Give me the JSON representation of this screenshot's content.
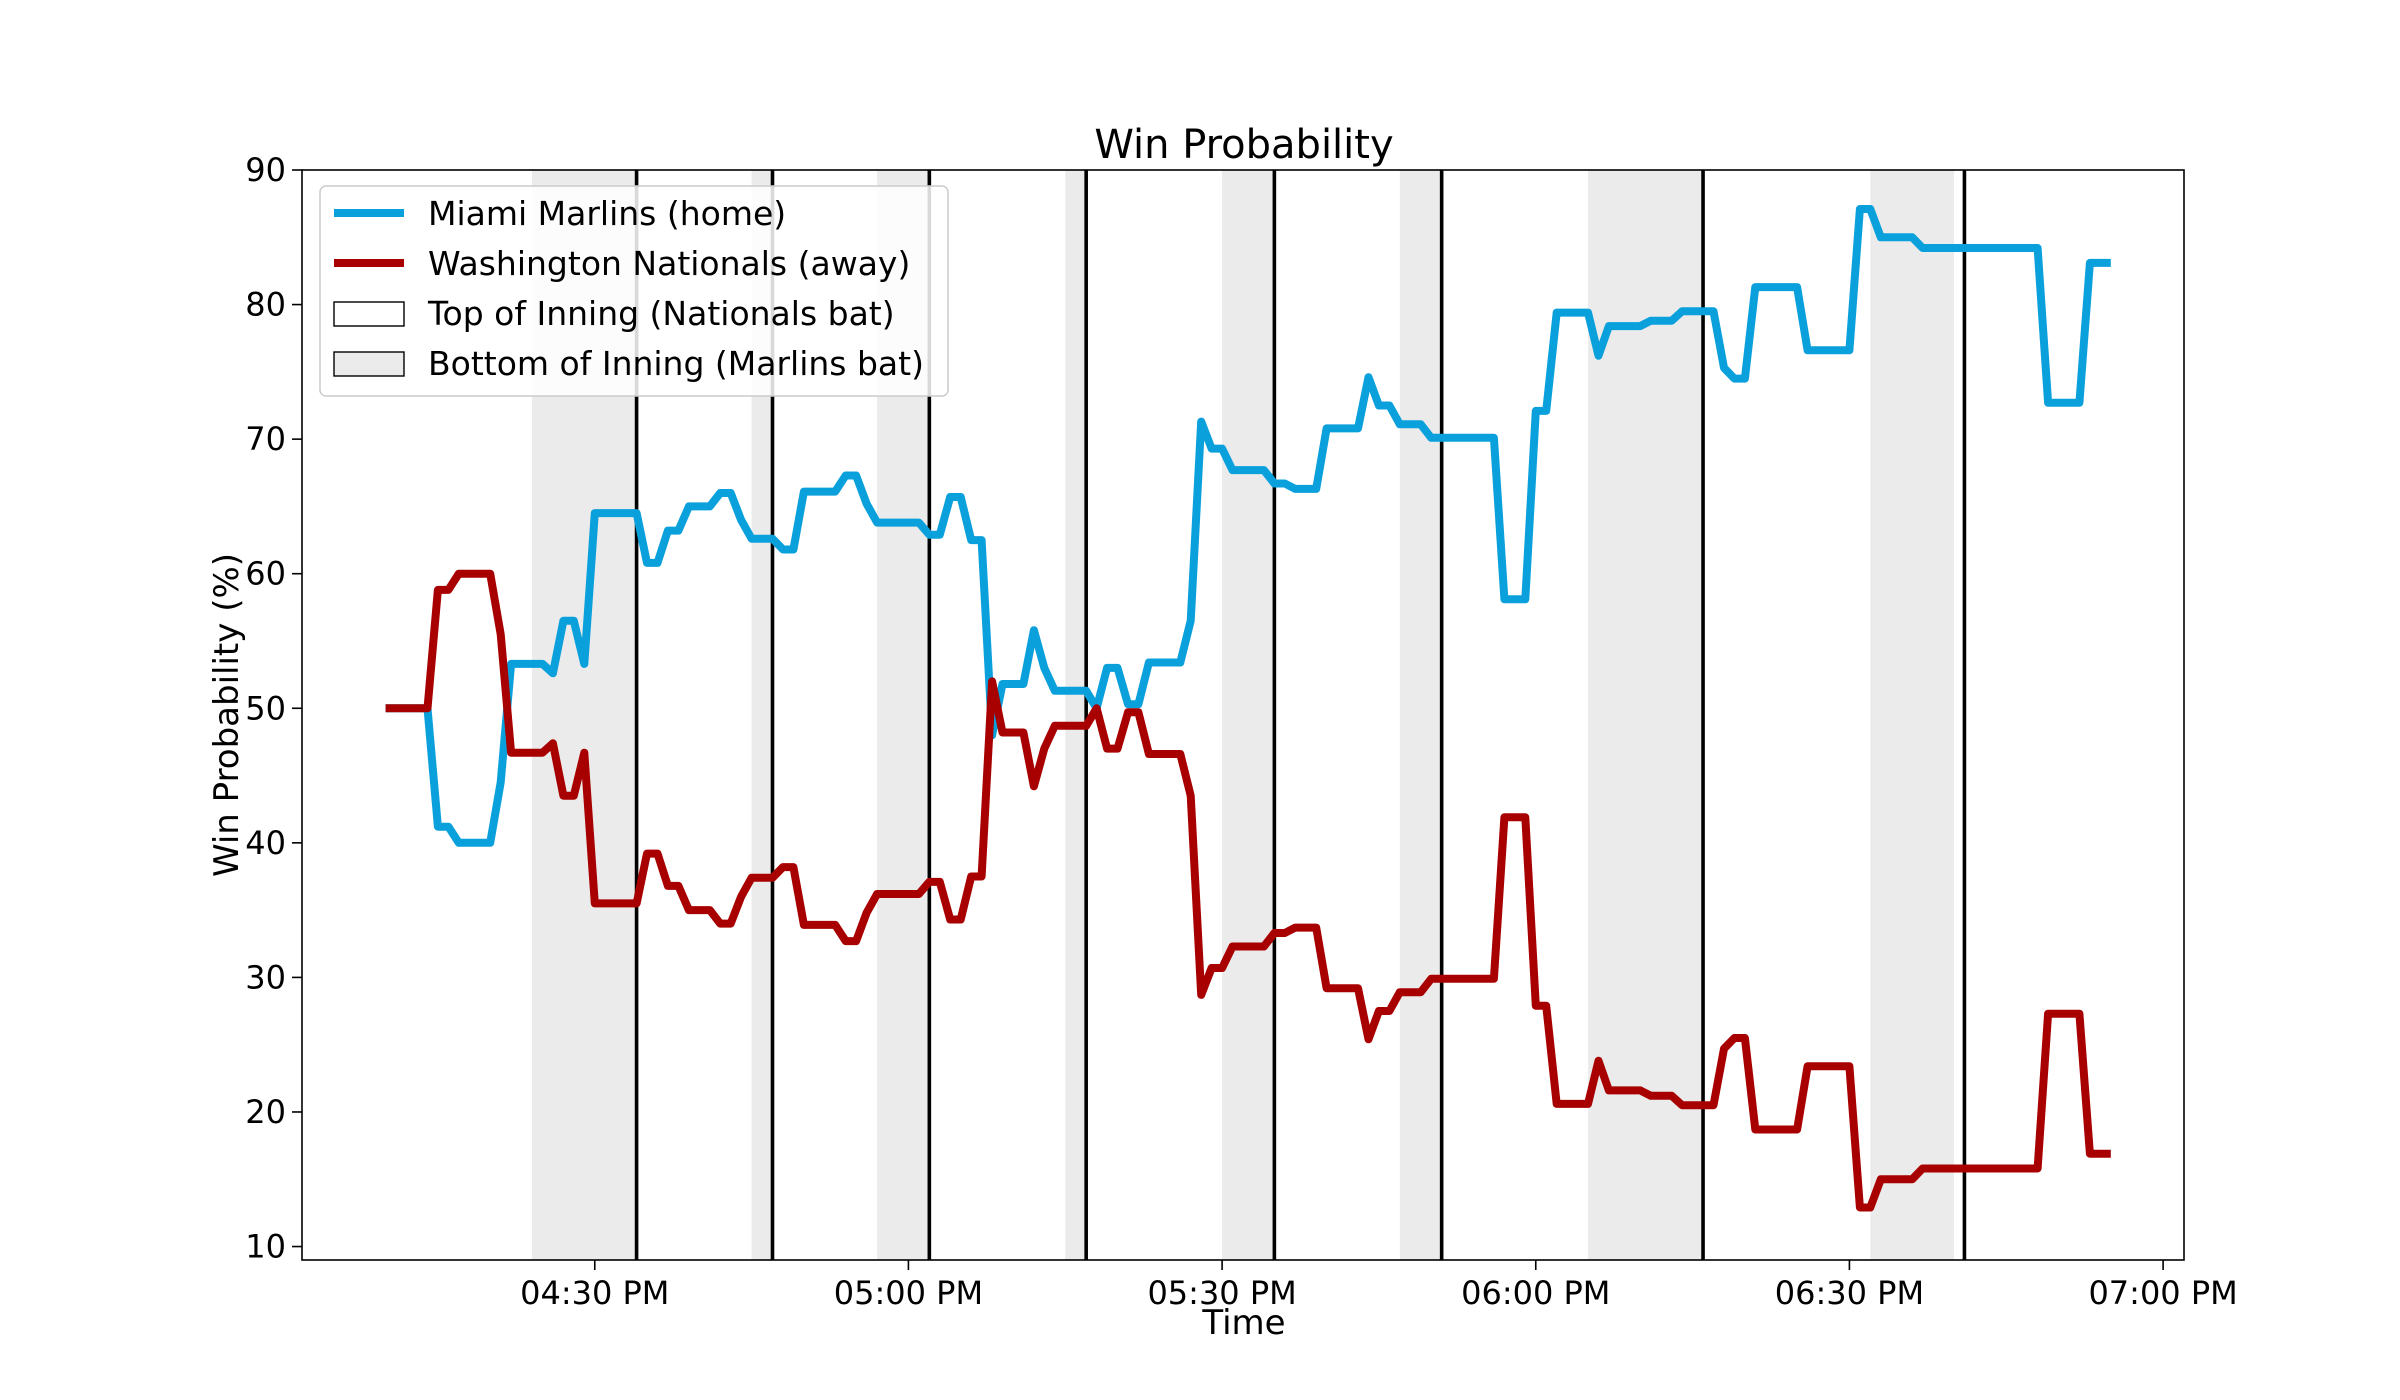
{
  "chart_data": {
    "type": "line",
    "title": "Win Probability",
    "xlabel": "Time",
    "ylabel": "Win Probability (%)",
    "ylim": [
      9,
      90
    ],
    "yticks": [
      10,
      20,
      30,
      40,
      50,
      60,
      70,
      80,
      90
    ],
    "xlim": [
      "04:02 PM",
      "07:02 PM"
    ],
    "xticks": [
      "04:30 PM",
      "05:00 PM",
      "05:30 PM",
      "06:00 PM",
      "06:30 PM",
      "07:00 PM"
    ],
    "grid": false,
    "legend_position": "top-left",
    "colors": {
      "home": "#0aa0dc",
      "away": "#a80000",
      "shade": "#ebebeb"
    },
    "legend": [
      {
        "label": "Miami Marlins (home)",
        "kind": "line",
        "color": "#0aa0dc"
      },
      {
        "label": "Washington Nationals (away)",
        "kind": "line",
        "color": "#a80000"
      },
      {
        "label": "Top of Inning (Nationals bat)",
        "kind": "patch",
        "color": "#ffffff"
      },
      {
        "label": "Bottom of Inning (Marlins bat)",
        "kind": "patch",
        "color": "#ebebeb"
      }
    ],
    "inning_breaks": [
      "04:34 PM",
      "04:47 PM",
      "05:02 PM",
      "05:17 PM",
      "05:35 PM",
      "05:51 PM",
      "06:16 PM",
      "06:41 PM"
    ],
    "bottom_innings": [
      [
        "04:24 PM",
        "04:34 PM"
      ],
      [
        "04:45 PM",
        "04:47 PM"
      ],
      [
        "04:57 PM",
        "05:02 PM"
      ],
      [
        "05:15 PM",
        "05:17 PM"
      ],
      [
        "05:30 PM",
        "05:35 PM"
      ],
      [
        "05:47 PM",
        "05:51 PM"
      ],
      [
        "06:05 PM",
        "06:16 PM"
      ],
      [
        "06:32 PM",
        "06:40 PM"
      ]
    ],
    "series": [
      {
        "name": "Miami Marlins (home)",
        "points": [
          [
            "04:10 PM",
            50.0
          ],
          [
            "04:14 PM",
            50.0
          ],
          [
            "04:15 PM",
            41.2
          ],
          [
            "04:16 PM",
            41.2
          ],
          [
            "04:17 PM",
            40.0
          ],
          [
            "04:20 PM",
            40.0
          ],
          [
            "04:21 PM",
            44.5
          ],
          [
            "04:22 PM",
            53.3
          ],
          [
            "04:25 PM",
            53.3
          ],
          [
            "04:26 PM",
            52.6
          ],
          [
            "04:27 PM",
            56.5
          ],
          [
            "04:28 PM",
            56.5
          ],
          [
            "04:29 PM",
            53.3
          ],
          [
            "04:30 PM",
            64.5
          ],
          [
            "04:34 PM",
            64.5
          ],
          [
            "04:35 PM",
            60.8
          ],
          [
            "04:36 PM",
            60.8
          ],
          [
            "04:37 PM",
            63.2
          ],
          [
            "04:38 PM",
            63.2
          ],
          [
            "04:39 PM",
            65.0
          ],
          [
            "04:41 PM",
            65.0
          ],
          [
            "04:42 PM",
            66.0
          ],
          [
            "04:43 PM",
            66.0
          ],
          [
            "04:44 PM",
            64.0
          ],
          [
            "04:45 PM",
            62.6
          ],
          [
            "04:47 PM",
            62.6
          ],
          [
            "04:48 PM",
            61.8
          ],
          [
            "04:49 PM",
            61.8
          ],
          [
            "04:50 PM",
            66.1
          ],
          [
            "04:53 PM",
            66.1
          ],
          [
            "04:54 PM",
            67.3
          ],
          [
            "04:55 PM",
            67.3
          ],
          [
            "04:56 PM",
            65.2
          ],
          [
            "04:57 PM",
            63.8
          ],
          [
            "05:00 PM",
            63.8
          ],
          [
            "05:01 PM",
            63.8
          ],
          [
            "05:02 PM",
            62.9
          ],
          [
            "05:03 PM",
            62.9
          ],
          [
            "05:04 PM",
            65.7
          ],
          [
            "05:05 PM",
            65.7
          ],
          [
            "05:06 PM",
            62.5
          ],
          [
            "05:07 PM",
            62.5
          ],
          [
            "05:08 PM",
            48.0
          ],
          [
            "05:09 PM",
            51.8
          ],
          [
            "05:11 PM",
            51.8
          ],
          [
            "05:12 PM",
            55.8
          ],
          [
            "05:13 PM",
            53.0
          ],
          [
            "05:14 PM",
            51.3
          ],
          [
            "05:17 PM",
            51.3
          ],
          [
            "05:18 PM",
            50.0
          ],
          [
            "05:19 PM",
            53.0
          ],
          [
            "05:20 PM",
            53.0
          ],
          [
            "05:21 PM",
            50.3
          ],
          [
            "05:22 PM",
            50.3
          ],
          [
            "05:23 PM",
            53.4
          ],
          [
            "05:26 PM",
            53.4
          ],
          [
            "05:27 PM",
            56.5
          ],
          [
            "05:28 PM",
            71.3
          ],
          [
            "05:29 PM",
            69.3
          ],
          [
            "05:30 PM",
            69.3
          ],
          [
            "05:31 PM",
            67.7
          ],
          [
            "05:34 PM",
            67.7
          ],
          [
            "05:35 PM",
            66.7
          ],
          [
            "05:36 PM",
            66.7
          ],
          [
            "05:37 PM",
            66.3
          ],
          [
            "05:39 PM",
            66.3
          ],
          [
            "05:40 PM",
            70.8
          ],
          [
            "05:43 PM",
            70.8
          ],
          [
            "05:44 PM",
            74.6
          ],
          [
            "05:45 PM",
            72.5
          ],
          [
            "05:46 PM",
            72.5
          ],
          [
            "05:47 PM",
            71.1
          ],
          [
            "05:49 PM",
            71.1
          ],
          [
            "05:50 PM",
            70.1
          ],
          [
            "05:56 PM",
            70.1
          ],
          [
            "05:57 PM",
            58.1
          ],
          [
            "05:59 PM",
            58.1
          ],
          [
            "06:00 PM",
            72.1
          ],
          [
            "06:01 PM",
            72.1
          ],
          [
            "06:02 PM",
            79.4
          ],
          [
            "06:05 PM",
            79.4
          ],
          [
            "06:06 PM",
            76.2
          ],
          [
            "06:07 PM",
            78.4
          ],
          [
            "06:10 PM",
            78.4
          ],
          [
            "06:11 PM",
            78.8
          ],
          [
            "06:13 PM",
            78.8
          ],
          [
            "06:14 PM",
            79.5
          ],
          [
            "06:17 PM",
            79.5
          ],
          [
            "06:18 PM",
            75.3
          ],
          [
            "06:19 PM",
            74.5
          ],
          [
            "06:20 PM",
            74.5
          ],
          [
            "06:21 PM",
            81.3
          ],
          [
            "06:25 PM",
            81.3
          ],
          [
            "06:26 PM",
            76.6
          ],
          [
            "06:30 PM",
            76.6
          ],
          [
            "06:31 PM",
            87.1
          ],
          [
            "06:32 PM",
            87.1
          ],
          [
            "06:33 PM",
            85.0
          ],
          [
            "06:36 PM",
            85.0
          ],
          [
            "06:37 PM",
            84.2
          ],
          [
            "06:48 PM",
            84.2
          ],
          [
            "06:49 PM",
            72.7
          ],
          [
            "06:52 PM",
            72.7
          ],
          [
            "06:53 PM",
            83.1
          ],
          [
            "06:55 PM",
            83.1
          ]
        ]
      },
      {
        "name": "Washington Nationals (away)",
        "points": [
          [
            "04:10 PM",
            50.0
          ],
          [
            "04:14 PM",
            50.0
          ],
          [
            "04:15 PM",
            58.8
          ],
          [
            "04:16 PM",
            58.8
          ],
          [
            "04:17 PM",
            60.0
          ],
          [
            "04:20 PM",
            60.0
          ],
          [
            "04:21 PM",
            55.5
          ],
          [
            "04:22 PM",
            46.7
          ],
          [
            "04:25 PM",
            46.7
          ],
          [
            "04:26 PM",
            47.4
          ],
          [
            "04:27 PM",
            43.5
          ],
          [
            "04:28 PM",
            43.5
          ],
          [
            "04:29 PM",
            46.7
          ],
          [
            "04:30 PM",
            35.5
          ],
          [
            "04:34 PM",
            35.5
          ],
          [
            "04:35 PM",
            39.2
          ],
          [
            "04:36 PM",
            39.2
          ],
          [
            "04:37 PM",
            36.8
          ],
          [
            "04:38 PM",
            36.8
          ],
          [
            "04:39 PM",
            35.0
          ],
          [
            "04:41 PM",
            35.0
          ],
          [
            "04:42 PM",
            34.0
          ],
          [
            "04:43 PM",
            34.0
          ],
          [
            "04:44 PM",
            36.0
          ],
          [
            "04:45 PM",
            37.4
          ],
          [
            "04:47 PM",
            37.4
          ],
          [
            "04:48 PM",
            38.2
          ],
          [
            "04:49 PM",
            38.2
          ],
          [
            "04:50 PM",
            33.9
          ],
          [
            "04:53 PM",
            33.9
          ],
          [
            "04:54 PM",
            32.7
          ],
          [
            "04:55 PM",
            32.7
          ],
          [
            "04:56 PM",
            34.8
          ],
          [
            "04:57 PM",
            36.2
          ],
          [
            "05:00 PM",
            36.2
          ],
          [
            "05:01 PM",
            36.2
          ],
          [
            "05:02 PM",
            37.1
          ],
          [
            "05:03 PM",
            37.1
          ],
          [
            "05:04 PM",
            34.3
          ],
          [
            "05:05 PM",
            34.3
          ],
          [
            "05:06 PM",
            37.5
          ],
          [
            "05:07 PM",
            37.5
          ],
          [
            "05:08 PM",
            52.0
          ],
          [
            "05:09 PM",
            48.2
          ],
          [
            "05:11 PM",
            48.2
          ],
          [
            "05:12 PM",
            44.2
          ],
          [
            "05:13 PM",
            47.0
          ],
          [
            "05:14 PM",
            48.7
          ],
          [
            "05:17 PM",
            48.7
          ],
          [
            "05:18 PM",
            50.0
          ],
          [
            "05:19 PM",
            47.0
          ],
          [
            "05:20 PM",
            47.0
          ],
          [
            "05:21 PM",
            49.7
          ],
          [
            "05:22 PM",
            49.7
          ],
          [
            "05:23 PM",
            46.6
          ],
          [
            "05:26 PM",
            46.6
          ],
          [
            "05:27 PM",
            43.5
          ],
          [
            "05:28 PM",
            28.7
          ],
          [
            "05:29 PM",
            30.7
          ],
          [
            "05:30 PM",
            30.7
          ],
          [
            "05:31 PM",
            32.3
          ],
          [
            "05:34 PM",
            32.3
          ],
          [
            "05:35 PM",
            33.3
          ],
          [
            "05:36 PM",
            33.3
          ],
          [
            "05:37 PM",
            33.7
          ],
          [
            "05:39 PM",
            33.7
          ],
          [
            "05:40 PM",
            29.2
          ],
          [
            "05:43 PM",
            29.2
          ],
          [
            "05:44 PM",
            25.4
          ],
          [
            "05:45 PM",
            27.5
          ],
          [
            "05:46 PM",
            27.5
          ],
          [
            "05:47 PM",
            28.9
          ],
          [
            "05:49 PM",
            28.9
          ],
          [
            "05:50 PM",
            29.9
          ],
          [
            "05:56 PM",
            29.9
          ],
          [
            "05:57 PM",
            41.9
          ],
          [
            "05:59 PM",
            41.9
          ],
          [
            "06:00 PM",
            27.9
          ],
          [
            "06:01 PM",
            27.9
          ],
          [
            "06:02 PM",
            20.6
          ],
          [
            "06:05 PM",
            20.6
          ],
          [
            "06:06 PM",
            23.8
          ],
          [
            "06:07 PM",
            21.6
          ],
          [
            "06:10 PM",
            21.6
          ],
          [
            "06:11 PM",
            21.2
          ],
          [
            "06:13 PM",
            21.2
          ],
          [
            "06:14 PM",
            20.5
          ],
          [
            "06:17 PM",
            20.5
          ],
          [
            "06:18 PM",
            24.7
          ],
          [
            "06:19 PM",
            25.5
          ],
          [
            "06:20 PM",
            25.5
          ],
          [
            "06:21 PM",
            18.7
          ],
          [
            "06:25 PM",
            18.7
          ],
          [
            "06:26 PM",
            23.4
          ],
          [
            "06:30 PM",
            23.4
          ],
          [
            "06:31 PM",
            12.9
          ],
          [
            "06:32 PM",
            12.9
          ],
          [
            "06:33 PM",
            15.0
          ],
          [
            "06:36 PM",
            15.0
          ],
          [
            "06:37 PM",
            15.8
          ],
          [
            "06:48 PM",
            15.8
          ],
          [
            "06:49 PM",
            27.3
          ],
          [
            "06:52 PM",
            27.3
          ],
          [
            "06:53 PM",
            16.9
          ],
          [
            "06:55 PM",
            16.9
          ]
        ]
      }
    ]
  }
}
